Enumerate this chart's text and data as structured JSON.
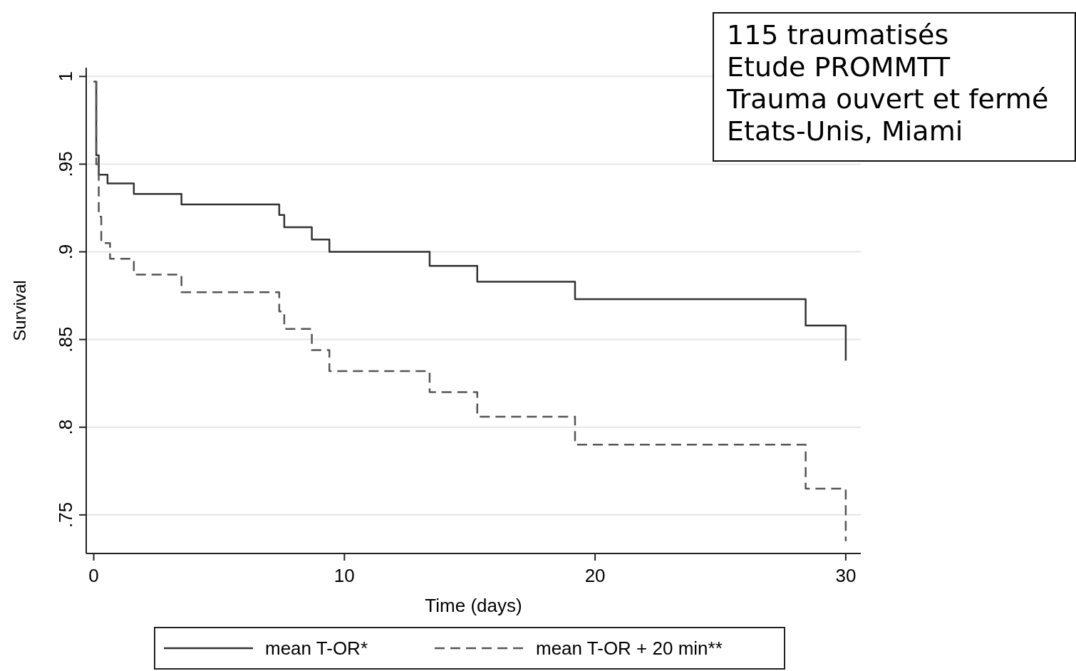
{
  "chart_data": {
    "type": "step",
    "xlabel": "Time (days)",
    "ylabel": "Survival",
    "xlim": [
      -0.3,
      30.6
    ],
    "ylim": [
      0.728,
      1.005
    ],
    "xticks": [
      0,
      10,
      20,
      30
    ],
    "yticks": [
      {
        "value": 0.75,
        "label": ".75"
      },
      {
        "value": 0.8,
        "label": ".8"
      },
      {
        "value": 0.85,
        "label": ".85"
      },
      {
        "value": 0.9,
        "label": ".9"
      },
      {
        "value": 0.95,
        "label": ".95"
      },
      {
        "value": 1,
        "label": "1"
      }
    ],
    "grid": "y",
    "legend": "bottom",
    "marker": "none",
    "annotations": [
      "115 traumatisés\nEtude PROMMTT\nTrauma ouvert et fermé\nEtats-Unis, Miami"
    ],
    "series": [
      {
        "name": "mean T-OR*",
        "color": "#333333",
        "line_style": "solid",
        "x": [
          0,
          0.1,
          0.2,
          0.55,
          1.6,
          3.5,
          7.4,
          7.6,
          8.7,
          9.4,
          13.4,
          15.3,
          19.2,
          28.4,
          30,
          30
        ],
        "values": [
          0.997,
          0.955,
          0.944,
          0.939,
          0.933,
          0.927,
          0.921,
          0.914,
          0.907,
          0.9,
          0.892,
          0.883,
          0.873,
          0.858,
          0.858,
          0.838
        ]
      },
      {
        "name": "mean T-OR + 20 min**",
        "color": "#555555",
        "line_style": "dashed",
        "x": [
          0,
          0.1,
          0.2,
          0.3,
          0.65,
          1.6,
          3.5,
          7.4,
          7.6,
          8.7,
          9.4,
          13.4,
          15.3,
          19.2,
          28.4,
          30,
          30
        ],
        "values": [
          0.997,
          0.95,
          0.92,
          0.905,
          0.896,
          0.887,
          0.877,
          0.866,
          0.856,
          0.844,
          0.832,
          0.82,
          0.806,
          0.79,
          0.765,
          0.765,
          0.735
        ]
      }
    ]
  }
}
